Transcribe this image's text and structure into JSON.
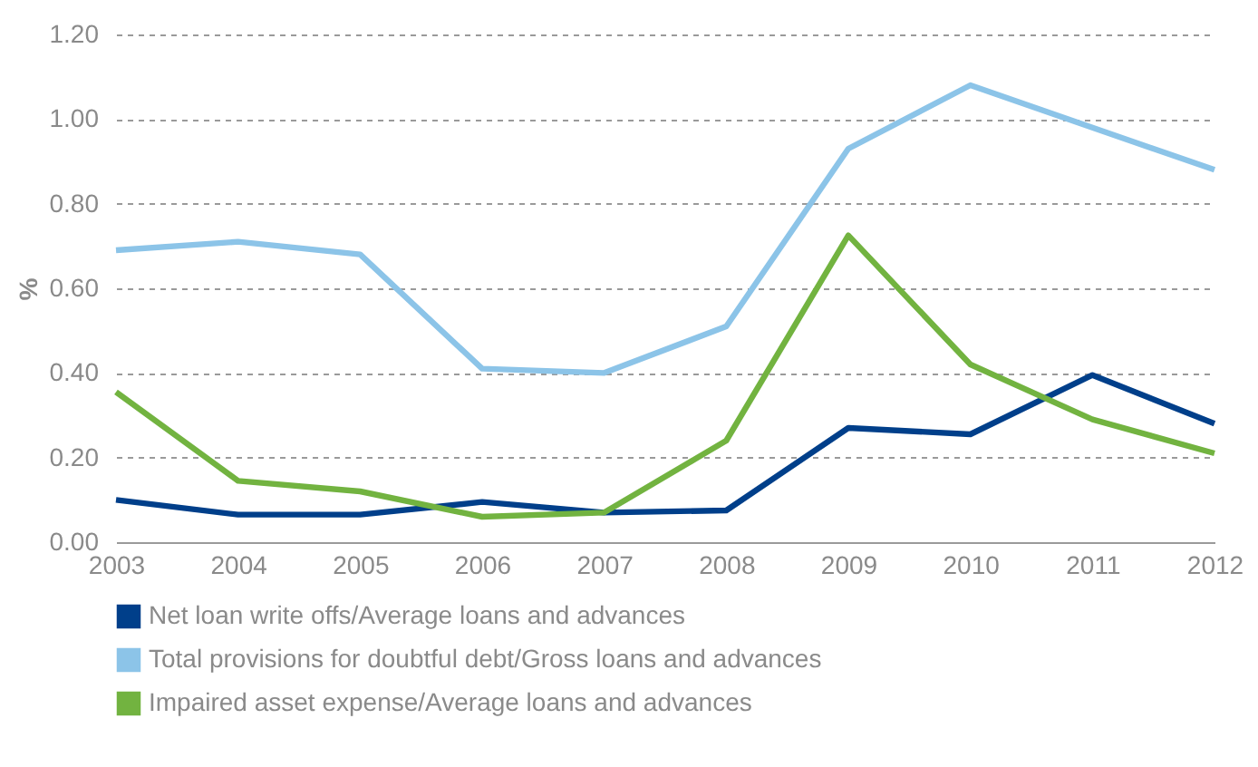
{
  "chart_data": {
    "type": "line",
    "ylabel": "%",
    "categories": [
      "2003",
      "2004",
      "2005",
      "2006",
      "2007",
      "2008",
      "2009",
      "2010",
      "2011",
      "2012"
    ],
    "series": [
      {
        "name": "Net loan write offs/Average loans and advances",
        "color": "#003f8a",
        "values": [
          0.1,
          0.065,
          0.065,
          0.095,
          0.07,
          0.075,
          0.27,
          0.255,
          0.395,
          0.28
        ]
      },
      {
        "name": "Total provisions for doubtful debt/Gross loans and advances",
        "color": "#8cc4e8",
        "values": [
          0.69,
          0.71,
          0.68,
          0.41,
          0.4,
          0.51,
          0.93,
          1.08,
          0.98,
          0.88
        ]
      },
      {
        "name": "Impaired asset expense/Average loans and advances",
        "color": "#72b340",
        "values": [
          0.355,
          0.145,
          0.12,
          0.06,
          0.07,
          0.24,
          0.725,
          0.42,
          0.29,
          0.21
        ]
      }
    ],
    "ylim": [
      0,
      1.2
    ],
    "yticks": [
      {
        "value": 0,
        "label": "0.00"
      },
      {
        "value": 0.2,
        "label": "0.20"
      },
      {
        "value": 0.4,
        "label": "0.40"
      },
      {
        "value": 0.6,
        "label": "0.60"
      },
      {
        "value": 0.8,
        "label": "0.80"
      },
      {
        "value": 1.0,
        "label": "1.00"
      },
      {
        "value": 1.2,
        "label": "1.20"
      }
    ],
    "grid": "y",
    "legend": "bottom left",
    "marker": "none",
    "line_style": "solid"
  }
}
